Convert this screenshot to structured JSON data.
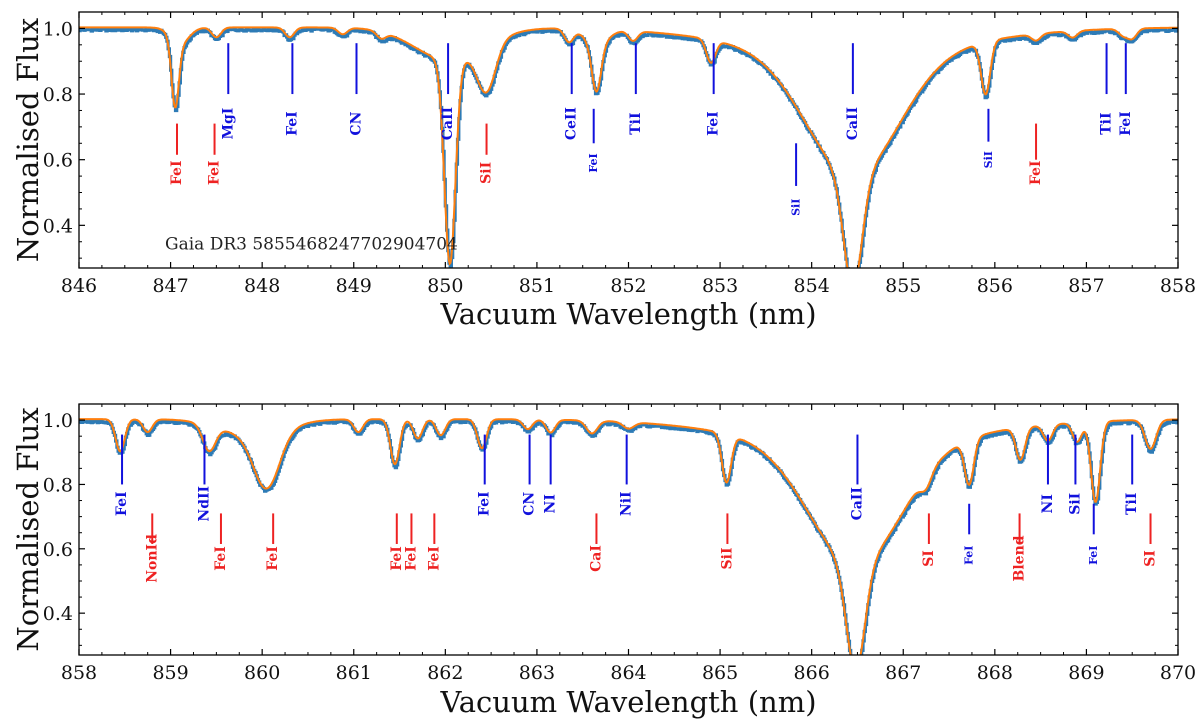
{
  "colors": {
    "observed": "#2d7bb6",
    "model": "#ff7f0e",
    "blue_marker": "#1111dd",
    "red_marker": "#ee2222",
    "axis": "#000000"
  },
  "chart_data": [
    {
      "type": "line",
      "id": "top",
      "xlabel": "Vacuum Wavelength (nm)",
      "ylabel": "Normalised Flux",
      "xlim": [
        846,
        858
      ],
      "ylim": [
        0.27,
        1.05
      ],
      "xticks": [
        846,
        847,
        848,
        849,
        850,
        851,
        852,
        853,
        854,
        855,
        856,
        857,
        858
      ],
      "yticks": [
        0.4,
        0.6,
        0.8,
        1.0
      ],
      "ytick_labels": [
        "0.4",
        "0.6",
        "0.8",
        "1.0"
      ],
      "annotation": "Gaia DR3 5855468247702904704",
      "features": [
        {
          "c": 847.05,
          "d": 0.2,
          "w": 0.04
        },
        {
          "c": 847.1,
          "d": 0.05,
          "w": 0.1
        },
        {
          "c": 847.5,
          "d": 0.03,
          "w": 0.05
        },
        {
          "c": 848.3,
          "d": 0.03,
          "w": 0.05
        },
        {
          "c": 848.88,
          "d": 0.02,
          "w": 0.05
        },
        {
          "c": 849.3,
          "d": 0.02,
          "w": 0.05
        },
        {
          "c": 850.05,
          "d": 0.62,
          "w": 0.06
        },
        {
          "c": 850.05,
          "d": 0.1,
          "w": 0.38
        },
        {
          "c": 850.45,
          "d": 0.14,
          "w": 0.1
        },
        {
          "c": 851.35,
          "d": 0.04,
          "w": 0.05
        },
        {
          "c": 851.65,
          "d": 0.14,
          "w": 0.05
        },
        {
          "c": 851.65,
          "d": 0.05,
          "w": 0.12
        },
        {
          "c": 852.05,
          "d": 0.03,
          "w": 0.05
        },
        {
          "c": 852.9,
          "d": 0.07,
          "w": 0.05
        },
        {
          "c": 854.45,
          "d": 0.34,
          "w": 0.1
        },
        {
          "c": 854.45,
          "d": 0.37,
          "w": 0.5
        },
        {
          "c": 854.45,
          "d": 0.08,
          "w": 1.2
        },
        {
          "c": 855.9,
          "d": 0.16,
          "w": 0.05
        },
        {
          "c": 856.45,
          "d": 0.02,
          "w": 0.05
        },
        {
          "c": 856.85,
          "d": 0.02,
          "w": 0.05
        },
        {
          "c": 857.4,
          "d": 0.02,
          "w": 0.05
        },
        {
          "c": 857.5,
          "d": 0.03,
          "w": 0.05
        }
      ],
      "lines": [
        {
          "label": "FeI",
          "x": 847.07,
          "color": "red",
          "y0": 0.615,
          "y1": 0.71,
          "ly": 0.56,
          "fs": 14
        },
        {
          "label": "FeI",
          "x": 847.48,
          "color": "red",
          "y0": 0.615,
          "y1": 0.71,
          "ly": 0.56,
          "fs": 14
        },
        {
          "label": "MgI",
          "x": 847.63,
          "color": "blue",
          "y0": 0.8,
          "y1": 0.955,
          "ly": 0.71,
          "fs": 14
        },
        {
          "label": "FeI",
          "x": 848.33,
          "color": "blue",
          "y0": 0.8,
          "y1": 0.955,
          "ly": 0.71,
          "fs": 14
        },
        {
          "label": "CN",
          "x": 849.03,
          "color": "blue",
          "y0": 0.8,
          "y1": 0.955,
          "ly": 0.71,
          "fs": 14
        },
        {
          "label": "CaII",
          "x": 850.03,
          "color": "blue",
          "y0": 0.8,
          "y1": 0.955,
          "ly": 0.71,
          "fs": 14
        },
        {
          "label": "SiI",
          "x": 850.45,
          "color": "red",
          "y0": 0.615,
          "y1": 0.71,
          "ly": 0.56,
          "fs": 14
        },
        {
          "label": "CeII",
          "x": 851.38,
          "color": "blue",
          "y0": 0.8,
          "y1": 0.955,
          "ly": 0.71,
          "fs": 14
        },
        {
          "label": "FeI",
          "x": 851.62,
          "color": "blue",
          "y0": 0.65,
          "y1": 0.755,
          "ly": 0.59,
          "fs": 11
        },
        {
          "label": "TiI",
          "x": 852.08,
          "color": "blue",
          "y0": 0.8,
          "y1": 0.955,
          "ly": 0.71,
          "fs": 14
        },
        {
          "label": "FeI",
          "x": 852.93,
          "color": "blue",
          "y0": 0.8,
          "y1": 0.955,
          "ly": 0.71,
          "fs": 14
        },
        {
          "label": "SiI",
          "x": 853.83,
          "color": "blue",
          "y0": 0.52,
          "y1": 0.65,
          "ly": 0.455,
          "fs": 11
        },
        {
          "label": "CaII",
          "x": 854.45,
          "color": "blue",
          "y0": 0.8,
          "y1": 0.955,
          "ly": 0.71,
          "fs": 14
        },
        {
          "label": "SiI",
          "x": 855.93,
          "color": "blue",
          "y0": 0.655,
          "y1": 0.755,
          "ly": 0.6,
          "fs": 11
        },
        {
          "label": "FeI",
          "x": 856.45,
          "color": "red",
          "y0": 0.6,
          "y1": 0.71,
          "ly": 0.56,
          "fs": 14
        },
        {
          "label": "TiI",
          "x": 857.22,
          "color": "blue",
          "y0": 0.8,
          "y1": 0.955,
          "ly": 0.71,
          "fs": 14
        },
        {
          "label": "FeI",
          "x": 857.43,
          "color": "blue",
          "y0": 0.8,
          "y1": 0.955,
          "ly": 0.71,
          "fs": 14
        }
      ]
    },
    {
      "type": "line",
      "id": "bottom",
      "xlabel": "Vacuum Wavelength (nm)",
      "ylabel": "Normalised Flux",
      "xlim": [
        858,
        870
      ],
      "ylim": [
        0.27,
        1.05
      ],
      "xticks": [
        858,
        859,
        860,
        861,
        862,
        863,
        864,
        865,
        866,
        867,
        868,
        869,
        870
      ],
      "yticks": [
        0.4,
        0.6,
        0.8,
        1.0
      ],
      "ytick_labels": [
        "0.4",
        "0.6",
        "0.8",
        "1.0"
      ],
      "features": [
        {
          "c": 858.45,
          "d": 0.1,
          "w": 0.05
        },
        {
          "c": 858.75,
          "d": 0.04,
          "w": 0.05
        },
        {
          "c": 859.42,
          "d": 0.08,
          "w": 0.07
        },
        {
          "c": 860.05,
          "d": 0.17,
          "w": 0.14
        },
        {
          "c": 859.9,
          "d": 0.05,
          "w": 0.35
        },
        {
          "c": 861.05,
          "d": 0.04,
          "w": 0.05
        },
        {
          "c": 861.45,
          "d": 0.14,
          "w": 0.05
        },
        {
          "c": 861.7,
          "d": 0.06,
          "w": 0.05
        },
        {
          "c": 861.95,
          "d": 0.05,
          "w": 0.05
        },
        {
          "c": 862.4,
          "d": 0.09,
          "w": 0.05
        },
        {
          "c": 862.9,
          "d": 0.03,
          "w": 0.05
        },
        {
          "c": 863.15,
          "d": 0.04,
          "w": 0.05
        },
        {
          "c": 863.6,
          "d": 0.04,
          "w": 0.06
        },
        {
          "c": 864.0,
          "d": 0.02,
          "w": 0.06
        },
        {
          "c": 865.07,
          "d": 0.15,
          "w": 0.05
        },
        {
          "c": 866.48,
          "d": 0.33,
          "w": 0.1
        },
        {
          "c": 866.48,
          "d": 0.37,
          "w": 0.5
        },
        {
          "c": 866.48,
          "d": 0.08,
          "w": 1.2
        },
        {
          "c": 867.25,
          "d": 0.04,
          "w": 0.06
        },
        {
          "c": 867.72,
          "d": 0.14,
          "w": 0.05
        },
        {
          "c": 868.28,
          "d": 0.1,
          "w": 0.05
        },
        {
          "c": 868.58,
          "d": 0.05,
          "w": 0.05
        },
        {
          "c": 868.9,
          "d": 0.06,
          "w": 0.05
        },
        {
          "c": 869.1,
          "d": 0.25,
          "w": 0.05
        },
        {
          "c": 869.7,
          "d": 0.09,
          "w": 0.06
        }
      ],
      "lines": [
        {
          "label": "FeI",
          "x": 858.47,
          "color": "blue",
          "y0": 0.8,
          "y1": 0.955,
          "ly": 0.74,
          "fs": 14
        },
        {
          "label": "NonId",
          "x": 858.8,
          "color": "red",
          "y0": 0.615,
          "y1": 0.71,
          "ly": 0.57,
          "fs": 14
        },
        {
          "label": "NdII",
          "x": 859.37,
          "color": "blue",
          "y0": 0.8,
          "y1": 0.955,
          "ly": 0.74,
          "fs": 14
        },
        {
          "label": "FeI",
          "x": 859.55,
          "color": "red",
          "y0": 0.615,
          "y1": 0.71,
          "ly": 0.57,
          "fs": 14
        },
        {
          "label": "FeI",
          "x": 860.12,
          "color": "red",
          "y0": 0.615,
          "y1": 0.71,
          "ly": 0.57,
          "fs": 14
        },
        {
          "label": "FeI",
          "x": 861.47,
          "color": "red",
          "y0": 0.615,
          "y1": 0.71,
          "ly": 0.57,
          "fs": 14
        },
        {
          "label": "FeI",
          "x": 861.63,
          "color": "red",
          "y0": 0.615,
          "y1": 0.71,
          "ly": 0.57,
          "fs": 14
        },
        {
          "label": "FeI",
          "x": 861.88,
          "color": "red",
          "y0": 0.615,
          "y1": 0.71,
          "ly": 0.57,
          "fs": 14
        },
        {
          "label": "FeI",
          "x": 862.43,
          "color": "blue",
          "y0": 0.8,
          "y1": 0.955,
          "ly": 0.74,
          "fs": 14
        },
        {
          "label": "CN",
          "x": 862.92,
          "color": "blue",
          "y0": 0.8,
          "y1": 0.955,
          "ly": 0.74,
          "fs": 14
        },
        {
          "label": "NI",
          "x": 863.15,
          "color": "blue",
          "y0": 0.8,
          "y1": 0.955,
          "ly": 0.74,
          "fs": 14
        },
        {
          "label": "CaI",
          "x": 863.65,
          "color": "red",
          "y0": 0.615,
          "y1": 0.71,
          "ly": 0.57,
          "fs": 14
        },
        {
          "label": "NiI",
          "x": 863.98,
          "color": "blue",
          "y0": 0.8,
          "y1": 0.955,
          "ly": 0.74,
          "fs": 14
        },
        {
          "label": "SiI",
          "x": 865.08,
          "color": "red",
          "y0": 0.615,
          "y1": 0.71,
          "ly": 0.57,
          "fs": 14
        },
        {
          "label": "CaII",
          "x": 866.5,
          "color": "blue",
          "y0": 0.8,
          "y1": 0.955,
          "ly": 0.74,
          "fs": 14
        },
        {
          "label": "SI",
          "x": 867.28,
          "color": "red",
          "y0": 0.615,
          "y1": 0.71,
          "ly": 0.57,
          "fs": 14
        },
        {
          "label": "FeI",
          "x": 867.72,
          "color": "blue",
          "y0": 0.645,
          "y1": 0.74,
          "ly": 0.58,
          "fs": 11
        },
        {
          "label": "Blend",
          "x": 868.27,
          "color": "red",
          "y0": 0.615,
          "y1": 0.71,
          "ly": 0.57,
          "fs": 14
        },
        {
          "label": "NI",
          "x": 868.58,
          "color": "blue",
          "y0": 0.8,
          "y1": 0.955,
          "ly": 0.74,
          "fs": 14
        },
        {
          "label": "SiI",
          "x": 868.88,
          "color": "blue",
          "y0": 0.8,
          "y1": 0.955,
          "ly": 0.74,
          "fs": 14
        },
        {
          "label": "FeI",
          "x": 869.08,
          "color": "blue",
          "y0": 0.645,
          "y1": 0.74,
          "ly": 0.58,
          "fs": 11
        },
        {
          "label": "TiI",
          "x": 869.5,
          "color": "blue",
          "y0": 0.8,
          "y1": 0.955,
          "ly": 0.74,
          "fs": 14
        },
        {
          "label": "SI",
          "x": 869.7,
          "color": "red",
          "y0": 0.615,
          "y1": 0.71,
          "ly": 0.57,
          "fs": 14
        }
      ]
    }
  ]
}
